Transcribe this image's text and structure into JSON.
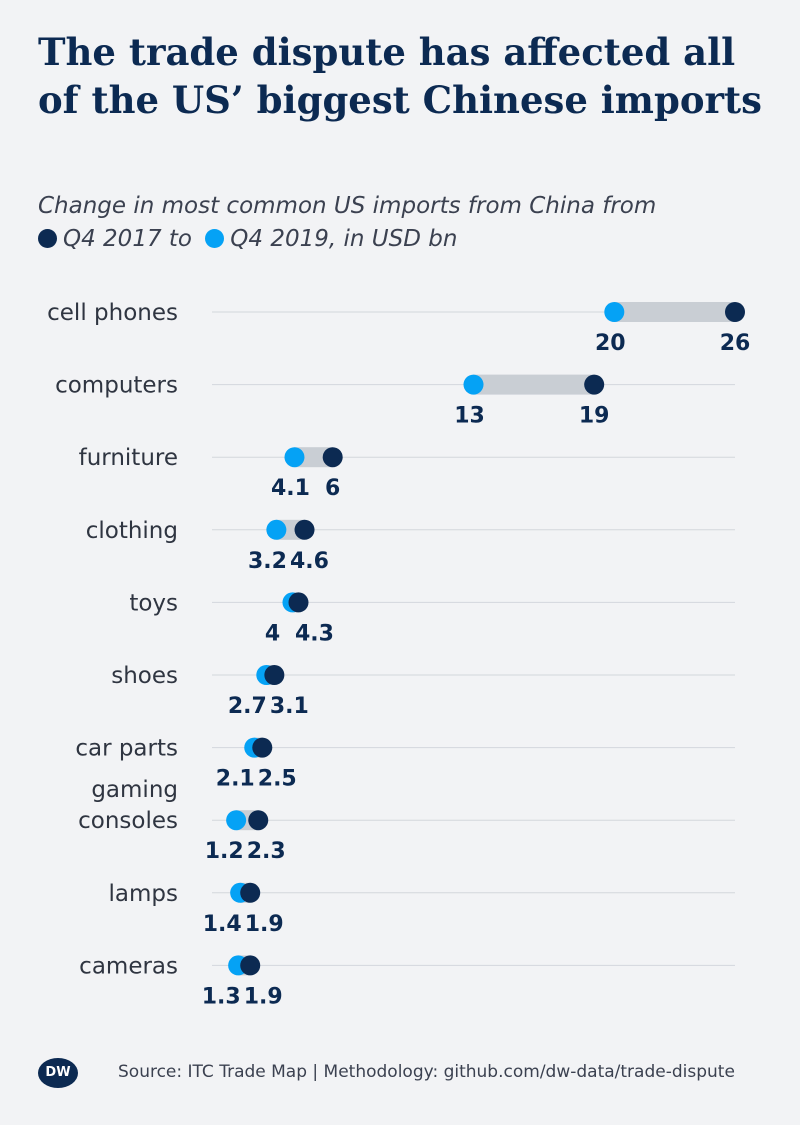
{
  "header": {
    "title": "The trade dispute has affected all of the US’ biggest Chinese imports"
  },
  "subtitle": {
    "line1": "Change in most common US imports from China from",
    "legend_2017": "Q4 2017 to",
    "legend_2019": "Q4 2019, in USD bn"
  },
  "colors": {
    "q4_2017": "#0c2a52",
    "q4_2019": "#05a2f5",
    "connector": "#c9ced4",
    "gridline": "#d3d7dc"
  },
  "chart_data": {
    "type": "dumbbell",
    "unit": "USD bn",
    "xlim": [
      0,
      26
    ],
    "grid": true,
    "legend_placement": "inline-subtitle",
    "categories": [
      "cell phones",
      "computers",
      "furniture",
      "clothing",
      "toys",
      "shoes",
      "car parts",
      "gaming consoles",
      "lamps",
      "cameras"
    ],
    "series": [
      {
        "name": "Q4 2017",
        "values": [
          26,
          19,
          6,
          4.6,
          4.3,
          3.1,
          2.5,
          2.3,
          1.9,
          1.9
        ]
      },
      {
        "name": "Q4 2019",
        "values": [
          20,
          13,
          4.1,
          3.2,
          4,
          2.7,
          2.1,
          1.2,
          1.4,
          1.3
        ]
      }
    ]
  },
  "footer": {
    "logo": "DW",
    "source": "Source: ITC Trade Map | Methodology: github.com/dw-data/trade-dispute"
  }
}
